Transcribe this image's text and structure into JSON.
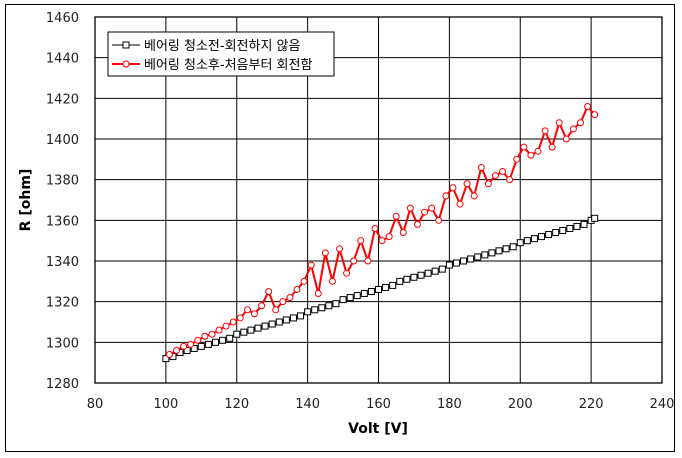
{
  "chart_data": {
    "type": "line",
    "title": "",
    "xlabel": "Volt [V]",
    "ylabel": "R [ohm]",
    "xlim": [
      80,
      240
    ],
    "ylim": [
      1280,
      1460
    ],
    "xticks": [
      80,
      100,
      120,
      140,
      160,
      180,
      200,
      220,
      240
    ],
    "yticks": [
      1280,
      1300,
      1320,
      1340,
      1360,
      1380,
      1400,
      1420,
      1440,
      1460
    ],
    "grid": true,
    "legend_position": "upper-left",
    "series": [
      {
        "name": "베어링 청소전-회전하지 않음",
        "color": "#000000",
        "marker": "square",
        "x": [
          100,
          102,
          104,
          106,
          108,
          110,
          112,
          114,
          116,
          118,
          120,
          122,
          124,
          126,
          128,
          130,
          132,
          134,
          136,
          138,
          140,
          142,
          144,
          146,
          148,
          150,
          152,
          154,
          156,
          158,
          160,
          162,
          164,
          166,
          168,
          170,
          172,
          174,
          176,
          178,
          180,
          182,
          184,
          186,
          188,
          190,
          192,
          194,
          196,
          198,
          200,
          202,
          204,
          206,
          208,
          210,
          212,
          214,
          216,
          218,
          220,
          221
        ],
        "y": [
          1292,
          1293,
          1295,
          1296,
          1297,
          1298,
          1299,
          1300,
          1301,
          1302,
          1304,
          1305,
          1306,
          1307,
          1308,
          1309,
          1310,
          1311,
          1312,
          1313,
          1315,
          1316,
          1317,
          1318,
          1319,
          1321,
          1322,
          1323,
          1324,
          1325,
          1326,
          1327,
          1328,
          1330,
          1331,
          1332,
          1333,
          1334,
          1335,
          1336,
          1338,
          1339,
          1340,
          1341,
          1342,
          1343,
          1344,
          1345,
          1346,
          1347,
          1349,
          1350,
          1351,
          1352,
          1353,
          1354,
          1355,
          1356,
          1357,
          1358,
          1360,
          1361
        ]
      },
      {
        "name": "베어링 청소후-처음부터 회전함",
        "color": "#ff0000",
        "marker": "circle",
        "x": [
          101,
          103,
          105,
          107,
          109,
          111,
          113,
          115,
          117,
          119,
          121,
          123,
          125,
          127,
          129,
          131,
          133,
          135,
          137,
          139,
          141,
          143,
          145,
          147,
          149,
          151,
          153,
          155,
          157,
          159,
          161,
          163,
          165,
          167,
          169,
          171,
          173,
          175,
          177,
          179,
          181,
          183,
          185,
          187,
          189,
          191,
          193,
          195,
          197,
          199,
          201,
          203,
          205,
          207,
          209,
          211,
          213,
          215,
          217,
          219,
          221
        ],
        "y": [
          1294,
          1296,
          1298,
          1299,
          1301,
          1303,
          1304,
          1306,
          1308,
          1310,
          1312,
          1316,
          1314,
          1318,
          1325,
          1316,
          1320,
          1322,
          1326,
          1330,
          1338,
          1324,
          1344,
          1330,
          1346,
          1334,
          1340,
          1350,
          1340,
          1356,
          1350,
          1352,
          1362,
          1354,
          1366,
          1358,
          1364,
          1366,
          1360,
          1372,
          1376,
          1368,
          1378,
          1372,
          1386,
          1378,
          1382,
          1384,
          1380,
          1390,
          1396,
          1392,
          1394,
          1404,
          1396,
          1408,
          1400,
          1405,
          1408,
          1416,
          1412
        ]
      }
    ]
  }
}
